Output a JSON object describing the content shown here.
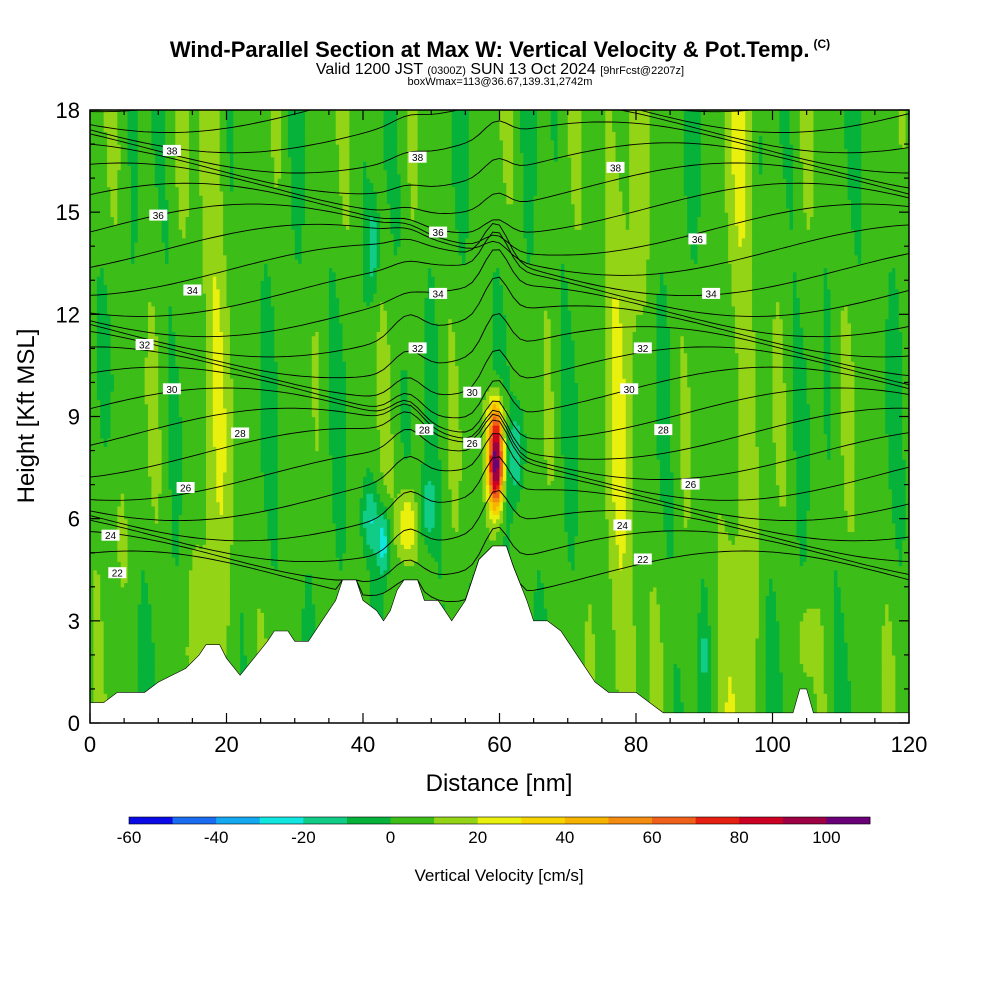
{
  "header": {
    "title": "Wind-Parallel Section at Max W: Vertical Velocity & Pot.Temp.",
    "title_mark": "(C)",
    "valid_prefix": "Valid 1200 JST",
    "valid_utc": "(0300Z)",
    "valid_date": "SUN 13 Oct 2024",
    "forecast_tag": "[9hrFcst@2207z]",
    "box_info": "boxWmax=113@36.67,139.31,2742m"
  },
  "chart_data": {
    "type": "heatmap",
    "xlabel": "Distance [nm]",
    "ylabel": "Height [Kft MSL]",
    "xlim": [
      0,
      120
    ],
    "ylim": [
      0,
      18
    ],
    "x_ticks": [
      "0",
      "20",
      "40",
      "60",
      "80",
      "100",
      "120"
    ],
    "y_ticks": [
      "0",
      "3",
      "6",
      "9",
      "12",
      "15",
      "18"
    ],
    "colorbar": {
      "title": "Vertical Velocity [cm/s]",
      "tick_labels": [
        "-60",
        "-40",
        "-20",
        "0",
        "20",
        "40",
        "60",
        "80",
        "100"
      ],
      "levels": [
        -60,
        -50,
        -40,
        -30,
        -20,
        -10,
        0,
        10,
        20,
        30,
        40,
        50,
        60,
        70,
        80,
        90,
        100,
        110
      ],
      "colors": [
        "#0a0ae6",
        "#1a6cf0",
        "#13a8f0",
        "#12e6e0",
        "#10cc86",
        "#06b23a",
        "#3dbd18",
        "#94d416",
        "#e9f00e",
        "#f6d400",
        "#f6b400",
        "#f58c12",
        "#f0601a",
        "#e62010",
        "#cc0022",
        "#9e0044",
        "#6a0078"
      ]
    },
    "terrain_kft": [
      [
        0,
        0.6
      ],
      [
        2,
        0.6
      ],
      [
        4,
        0.9
      ],
      [
        8,
        0.9
      ],
      [
        10,
        1.2
      ],
      [
        14,
        1.6
      ],
      [
        16,
        2.0
      ],
      [
        17,
        2.3
      ],
      [
        19,
        2.3
      ],
      [
        20,
        1.9
      ],
      [
        22,
        1.4
      ],
      [
        24,
        1.9
      ],
      [
        26,
        2.4
      ],
      [
        27,
        2.7
      ],
      [
        29,
        2.7
      ],
      [
        30,
        2.4
      ],
      [
        32,
        2.4
      ],
      [
        34,
        3.0
      ],
      [
        36,
        3.6
      ],
      [
        37,
        4.2
      ],
      [
        39,
        4.2
      ],
      [
        40,
        3.6
      ],
      [
        42,
        3.3
      ],
      [
        43,
        3.0
      ],
      [
        44,
        3.3
      ],
      [
        45,
        3.9
      ],
      [
        46,
        4.2
      ],
      [
        48,
        4.2
      ],
      [
        49,
        3.6
      ],
      [
        51,
        3.6
      ],
      [
        52,
        3.3
      ],
      [
        53,
        3.0
      ],
      [
        54,
        3.3
      ],
      [
        55,
        3.6
      ],
      [
        56,
        4.2
      ],
      [
        57,
        4.8
      ],
      [
        59,
        5.2
      ],
      [
        61,
        5.2
      ],
      [
        62,
        4.6
      ],
      [
        64,
        3.6
      ],
      [
        65,
        3.0
      ],
      [
        67,
        3.0
      ],
      [
        69,
        2.7
      ],
      [
        70,
        2.4
      ],
      [
        72,
        1.8
      ],
      [
        74,
        1.2
      ],
      [
        76,
        0.9
      ],
      [
        80,
        0.9
      ],
      [
        82,
        0.6
      ],
      [
        84,
        0.3
      ],
      [
        103,
        0.3
      ],
      [
        104,
        1.0
      ],
      [
        105,
        1.0
      ],
      [
        106,
        0.3
      ],
      [
        120,
        0.3
      ]
    ],
    "theta_levels_c": [
      20,
      22,
      24,
      26,
      28,
      30,
      32,
      34,
      36,
      38
    ],
    "theta_labels": [
      {
        "text": "38",
        "x": 12,
        "y": 16.8
      },
      {
        "text": "38",
        "x": 48,
        "y": 16.6
      },
      {
        "text": "38",
        "x": 77,
        "y": 16.3
      },
      {
        "text": "36",
        "x": 10,
        "y": 14.9
      },
      {
        "text": "36",
        "x": 51,
        "y": 14.4
      },
      {
        "text": "36",
        "x": 89,
        "y": 14.2
      },
      {
        "text": "34",
        "x": 15,
        "y": 12.7
      },
      {
        "text": "34",
        "x": 51,
        "y": 12.6
      },
      {
        "text": "34",
        "x": 91,
        "y": 12.6
      },
      {
        "text": "32",
        "x": 8,
        "y": 11.1
      },
      {
        "text": "32",
        "x": 48,
        "y": 11.0
      },
      {
        "text": "32",
        "x": 81,
        "y": 11.0
      },
      {
        "text": "30",
        "x": 12,
        "y": 9.8
      },
      {
        "text": "30",
        "x": 56,
        "y": 9.7
      },
      {
        "text": "30",
        "x": 79,
        "y": 9.8
      },
      {
        "text": "28",
        "x": 22,
        "y": 8.5
      },
      {
        "text": "28",
        "x": 49,
        "y": 8.6
      },
      {
        "text": "26",
        "x": 56,
        "y": 8.2
      },
      {
        "text": "28",
        "x": 84,
        "y": 8.6
      },
      {
        "text": "26",
        "x": 14,
        "y": 6.9
      },
      {
        "text": "26",
        "x": 88,
        "y": 7.0
      },
      {
        "text": "24",
        "x": 3,
        "y": 5.5
      },
      {
        "text": "24",
        "x": 78,
        "y": 5.8
      },
      {
        "text": "22",
        "x": 4,
        "y": 4.4
      },
      {
        "text": "22",
        "x": 81,
        "y": 4.8
      }
    ],
    "updraft_cores": [
      {
        "x": 59.5,
        "y": 7.6,
        "w_max": 113
      },
      {
        "x": 46.5,
        "y": 5.8,
        "w_max": 35
      }
    ]
  }
}
